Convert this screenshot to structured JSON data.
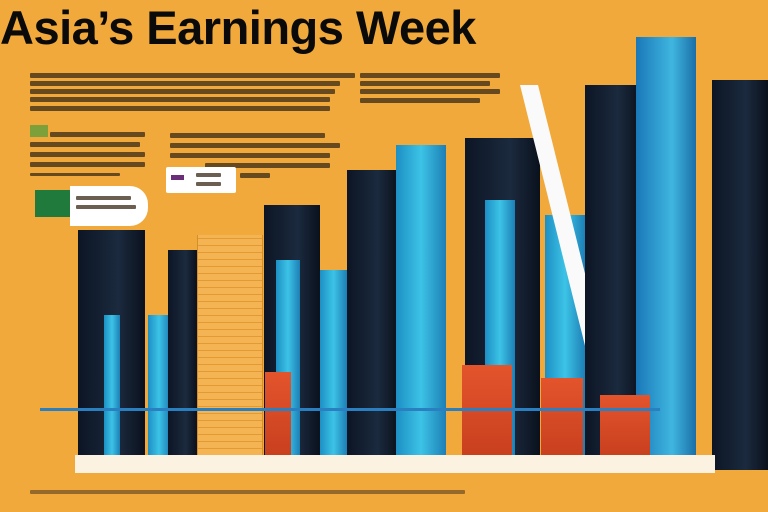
{
  "header": {
    "title": "Asia’s Earnings Week"
  },
  "colors": {
    "background": "#f0a93a",
    "tower_dark": "#0c1524",
    "tower_cyan": "#3cc3e6",
    "block_red": "#e3542c",
    "title": "#0a0a0a"
  },
  "icons": [
    "green-legend-swatch",
    "purple-legend-swatch"
  ]
}
